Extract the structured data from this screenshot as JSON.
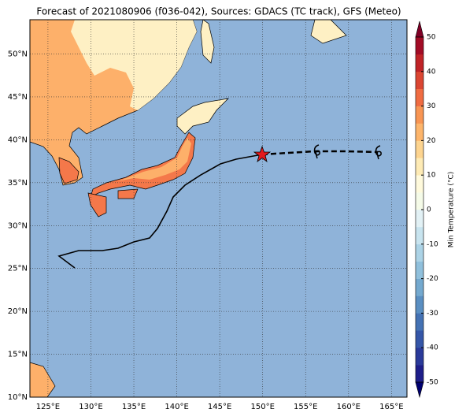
{
  "title": "Forecast of 2021080906 (f036-042), Sources: GDACS (TC track), GFS (Meteo)",
  "map": {
    "xlim": [
      122.9,
      166.8
    ],
    "ylim": [
      10,
      54
    ],
    "lon_ticks": [
      {
        "value": 125,
        "label": "125°E"
      },
      {
        "value": 130,
        "label": "130°E"
      },
      {
        "value": 135,
        "label": "135°E"
      },
      {
        "value": 140,
        "label": "140°E"
      },
      {
        "value": 145,
        "label": "145°E"
      },
      {
        "value": 150,
        "label": "150°E"
      },
      {
        "value": 155,
        "label": "155°E"
      },
      {
        "value": 160,
        "label": "160°E"
      },
      {
        "value": 165,
        "label": "165°E"
      }
    ],
    "lat_ticks": [
      {
        "value": 10,
        "label": "10°N"
      },
      {
        "value": 15,
        "label": "15°N"
      },
      {
        "value": 20,
        "label": "20°N"
      },
      {
        "value": 25,
        "label": "25°N"
      },
      {
        "value": 30,
        "label": "30°N"
      },
      {
        "value": 35,
        "label": "35°N"
      },
      {
        "value": 40,
        "label": "40°N"
      },
      {
        "value": 45,
        "label": "45°N"
      },
      {
        "value": 50,
        "label": "50°N"
      }
    ]
  },
  "colorbar": {
    "label": "Min Temperature (°C)",
    "lim": [
      -50,
      50
    ],
    "ticks": [
      -50,
      -40,
      -30,
      -20,
      -10,
      0,
      10,
      20,
      30,
      40,
      50
    ],
    "colors": [
      "#1e1e8a",
      "#2a3a9a",
      "#3556a8",
      "#4472b4",
      "#5a8fc2",
      "#74a9cf",
      "#90c0dc",
      "#acd3e6",
      "#c8e4ef",
      "#e2f1f5",
      "#f5fbe8",
      "#fffadc",
      "#feebb5",
      "#fdd48f",
      "#fdb56b",
      "#f89553",
      "#f06c42",
      "#db4632",
      "#c02327",
      "#a20c26"
    ]
  }
}
